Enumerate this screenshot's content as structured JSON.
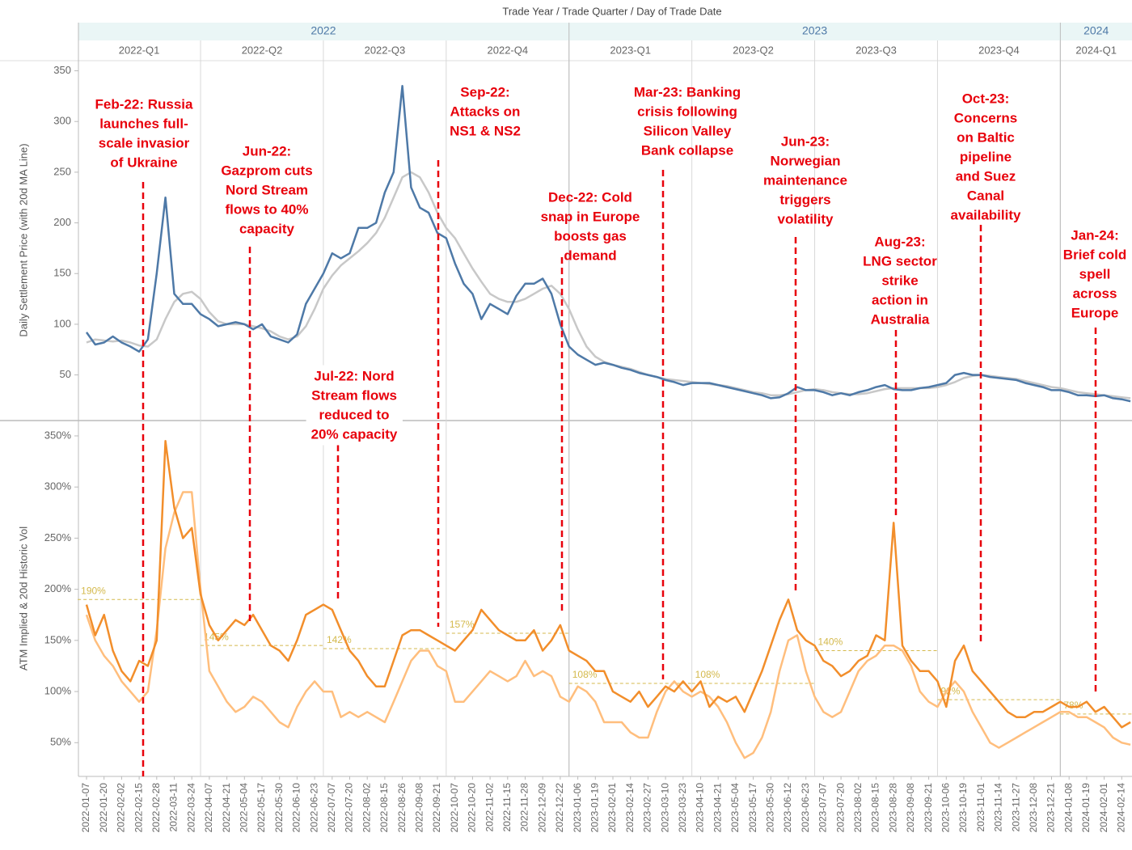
{
  "chart_data": {
    "type": "line",
    "title": "Trade Year / Trade Quarter / Day of Trade Date",
    "years": [
      "2022",
      "2023",
      "2024"
    ],
    "quarters": [
      "2022-Q1",
      "2022-Q2",
      "2022-Q3",
      "2022-Q4",
      "2023-Q1",
      "2023-Q2",
      "2023-Q3",
      "2023-Q4",
      "2024-Q1"
    ],
    "x": [
      "2022-01-07",
      null,
      "2022-01-20",
      null,
      "2022-02-02",
      null,
      "2022-02-15",
      null,
      "2022-02-28",
      null,
      "2022-03-11",
      null,
      "2022-03-24",
      null,
      "2022-04-07",
      null,
      "2022-04-21",
      null,
      "2022-05-04",
      null,
      "2022-05-17",
      null,
      "2022-05-30",
      null,
      "2022-06-10",
      null,
      "2022-06-23",
      null,
      "2022-07-07",
      null,
      "2022-07-20",
      null,
      "2022-08-02",
      null,
      "2022-08-15",
      null,
      "2022-08-26",
      null,
      "2022-09-08",
      null,
      "2022-09-21",
      null,
      "2022-10-07",
      null,
      "2022-10-20",
      null,
      "2022-11-02",
      null,
      "2022-11-15",
      null,
      "2022-11-28",
      null,
      "2022-12-09",
      null,
      "2022-12-22",
      null,
      "2023-01-06",
      null,
      "2023-01-19",
      null,
      "2023-02-01",
      null,
      "2023-02-14",
      null,
      "2023-02-27",
      null,
      "2023-03-10",
      null,
      "2023-03-23",
      null,
      "2023-04-10",
      null,
      "2023-04-21",
      null,
      "2023-05-04",
      null,
      "2023-05-17",
      null,
      "2023-05-30",
      null,
      "2023-06-12",
      null,
      "2023-06-23",
      null,
      "2023-07-07",
      null,
      "2023-07-20",
      null,
      "2023-08-02",
      null,
      "2023-08-15",
      null,
      "2023-08-28",
      null,
      "2023-09-08",
      null,
      "2023-09-21",
      null,
      "2023-10-06",
      null,
      "2023-10-19",
      null,
      "2023-11-01",
      null,
      "2023-11-14",
      null,
      "2023-11-27",
      null,
      "2023-12-08",
      null,
      "2023-12-21",
      null,
      "2024-01-08",
      null,
      "2024-01-19",
      null,
      "2024-02-01",
      null,
      "2024-02-14",
      null
    ],
    "panels": [
      {
        "ylabel": "Daily Settlement Price (with 20d MA Line)",
        "ylim": [
          5,
          360
        ],
        "yticks": [
          50,
          100,
          150,
          200,
          250,
          300,
          350
        ],
        "series": [
          {
            "color": "#4e79a7",
            "values": [
              92,
              80,
              82,
              88,
              82,
              78,
              73,
              85,
              150,
              225,
              130,
              120,
              120,
              110,
              105,
              98,
              100,
              102,
              100,
              95,
              100,
              88,
              85,
              82,
              90,
              120,
              135,
              150,
              170,
              165,
              170,
              195,
              195,
              200,
              230,
              250,
              335,
              235,
              215,
              210,
              190,
              185,
              160,
              140,
              130,
              105,
              120,
              115,
              110,
              128,
              140,
              140,
              145,
              130,
              100,
              78,
              70,
              65,
              60,
              62,
              60,
              57,
              55,
              52,
              50,
              48,
              45,
              43,
              40,
              42,
              42,
              42,
              40,
              38,
              36,
              34,
              32,
              30,
              27,
              28,
              32,
              38,
              35,
              35,
              33,
              30,
              32,
              30,
              33,
              35,
              38,
              40,
              36,
              35,
              35,
              37,
              38,
              40,
              42,
              50,
              52,
              50,
              50,
              48,
              47,
              46,
              45,
              42,
              40,
              38,
              35,
              35,
              33,
              30,
              30,
              29,
              30,
              27,
              26,
              24
            ]
          },
          {
            "color": "#c8c8c8",
            "values": [
              82,
              85,
              84,
              83,
              84,
              82,
              79,
              78,
              85,
              105,
              122,
              130,
              132,
              125,
              112,
              103,
              100,
              100,
              100,
              98,
              96,
              93,
              88,
              85,
              88,
              98,
              115,
              135,
              148,
              158,
              165,
              172,
              180,
              190,
              205,
              225,
              245,
              250,
              245,
              230,
              210,
              195,
              185,
              170,
              155,
              142,
              130,
              125,
              122,
              122,
              125,
              130,
              135,
              138,
              130,
              115,
              95,
              78,
              68,
              63,
              60,
              58,
              56,
              53,
              50,
              48,
              46,
              45,
              44,
              43,
              42,
              41,
              40,
              39,
              37,
              35,
              33,
              32,
              30,
              30,
              31,
              33,
              35,
              36,
              35,
              33,
              32,
              31,
              31,
              32,
              34,
              36,
              37,
              37,
              37,
              37,
              37,
              38,
              40,
              43,
              47,
              49,
              50,
              49,
              48,
              47,
              46,
              44,
              42,
              40,
              38,
              37,
              35,
              33,
              32,
              31,
              30,
              29,
              28,
              27
            ]
          }
        ]
      },
      {
        "ylabel": "ATM Implied & 20d Historic Vol",
        "ylim": [
          17,
          365
        ],
        "yticks": [
          {
            "value": 50,
            "label": "50%"
          },
          {
            "value": 100,
            "label": "100%"
          },
          {
            "value": 150,
            "label": "150%"
          },
          {
            "value": 200,
            "label": "200%"
          },
          {
            "value": 250,
            "label": "250%"
          },
          {
            "value": 300,
            "label": "300%"
          },
          {
            "value": 350,
            "label": "350%"
          }
        ],
        "series": [
          {
            "color": "#f28e2b",
            "values": [
              185,
              155,
              175,
              140,
              120,
              110,
              130,
              125,
              150,
              345,
              280,
              250,
              260,
              195,
              165,
              150,
              160,
              170,
              165,
              175,
              160,
              145,
              140,
              130,
              150,
              175,
              180,
              185,
              180,
              160,
              140,
              130,
              115,
              105,
              105,
              130,
              155,
              160,
              160,
              155,
              150,
              145,
              140,
              150,
              160,
              180,
              170,
              160,
              155,
              150,
              150,
              160,
              140,
              150,
              165,
              140,
              135,
              130,
              120,
              120,
              100,
              95,
              90,
              100,
              85,
              95,
              105,
              100,
              110,
              100,
              110,
              85,
              95,
              90,
              95,
              80,
              100,
              120,
              145,
              170,
              190,
              160,
              150,
              145,
              130,
              125,
              115,
              120,
              130,
              135,
              155,
              150,
              265,
              145,
              130,
              120,
              120,
              110,
              85,
              130,
              145,
              120,
              110,
              100,
              90,
              80,
              75,
              75,
              80,
              80,
              85,
              90,
              85,
              85,
              90,
              80,
              85,
              75,
              65,
              70
            ]
          },
          {
            "color": "#ffbe7d",
            "values": [
              175,
              150,
              135,
              125,
              110,
              100,
              90,
              100,
              160,
              240,
              275,
              295,
              295,
              200,
              120,
              105,
              90,
              80,
              85,
              95,
              90,
              80,
              70,
              65,
              85,
              100,
              110,
              100,
              100,
              75,
              80,
              75,
              80,
              75,
              70,
              90,
              110,
              130,
              140,
              140,
              125,
              120,
              90,
              90,
              100,
              110,
              120,
              115,
              110,
              115,
              130,
              115,
              120,
              115,
              95,
              90,
              105,
              100,
              90,
              70,
              70,
              70,
              60,
              55,
              55,
              80,
              100,
              110,
              100,
              95,
              100,
              95,
              85,
              70,
              50,
              35,
              40,
              55,
              80,
              120,
              150,
              155,
              120,
              95,
              80,
              75,
              80,
              100,
              120,
              130,
              135,
              145,
              145,
              140,
              125,
              100,
              90,
              85,
              100,
              110,
              100,
              80,
              65,
              50,
              45,
              50,
              55,
              60,
              65,
              70,
              75,
              80,
              80,
              75,
              75,
              70,
              65,
              55,
              50,
              48
            ]
          }
        ],
        "reference_lines": [
          {
            "value": 190,
            "label": "190%"
          },
          {
            "value": 145,
            "label": "145%"
          },
          {
            "value": 142,
            "label": "142%"
          },
          {
            "value": 157,
            "label": "157%"
          },
          {
            "value": 108,
            "label": "108%"
          },
          {
            "value": 108,
            "label": "108%"
          },
          {
            "value": 140,
            "label": "140%"
          },
          {
            "value": 92,
            "label": "92%"
          },
          {
            "value": 78,
            "label": "78%"
          }
        ],
        "reference_color": "#d4b94c"
      }
    ],
    "annotation_color": "#e8000b",
    "annotations": [
      [
        "Feb-22: Russia",
        "launches full-",
        "scale invasior",
        "of Ukraine"
      ],
      [
        "Jun-22:",
        "Gazprom cuts",
        "Nord Stream",
        "flows to 40%",
        "capacity"
      ],
      [
        "Jul-22: Nord",
        "Stream flows",
        "reduced to",
        "20% capacity"
      ],
      [
        "Sep-22:",
        "Attacks on",
        "NS1 & NS2"
      ],
      [
        "Dec-22: Cold",
        "snap in Europe",
        "boosts gas",
        "demand"
      ],
      [
        "Mar-23: Banking",
        "crisis following",
        "Silicon Valley",
        "Bank collapse"
      ],
      [
        "Jun-23:",
        "Norwegian",
        "maintenance",
        "triggers",
        "volatility"
      ],
      [
        "Aug-23:",
        "LNG sector",
        "strike",
        "action in",
        "Australia"
      ],
      [
        "Oct-23:",
        "Concerns",
        "on Baltic",
        "pipeline",
        "and Suez",
        "Canal",
        "availability"
      ],
      [
        "Jan-24:",
        "Brief cold",
        "spell",
        "across",
        "Europe"
      ]
    ]
  }
}
